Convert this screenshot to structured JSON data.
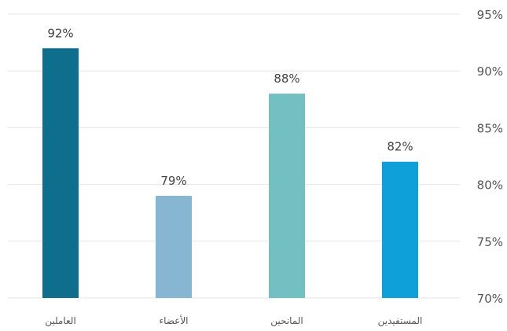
{
  "chart_data": {
    "type": "bar",
    "categories": [
      "العاملين",
      "الأعضاء",
      "المانحين",
      "المستفيدين"
    ],
    "values": [
      92,
      79,
      88,
      82
    ],
    "value_labels": [
      "92%",
      "79%",
      "88%",
      "82%"
    ],
    "colors": [
      "#0e6e8c",
      "#86b6d2",
      "#72c0c2",
      "#0ea0d9"
    ],
    "ylim": [
      70,
      95
    ],
    "yticks": [
      70,
      75,
      80,
      85,
      90,
      95
    ],
    "ytick_labels": [
      "70%",
      "75%",
      "80%",
      "85%",
      "90%",
      "95%"
    ],
    "yaxis_side": "right",
    "grid": true,
    "title": "",
    "xlabel": "",
    "ylabel": ""
  }
}
